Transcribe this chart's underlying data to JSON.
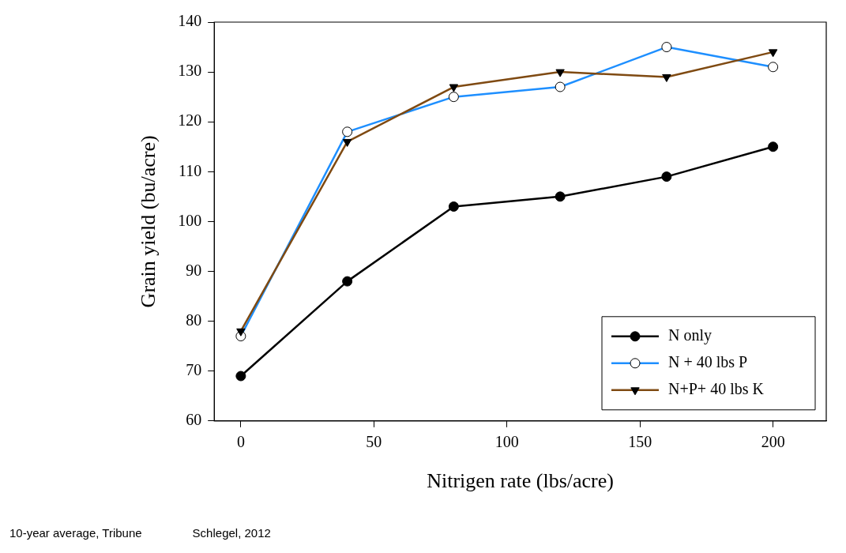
{
  "chart_data": {
    "type": "line",
    "xlabel": "Nitrigen rate (lbs/acre)",
    "ylabel": "Grain yield (bu/acre)",
    "x": [
      0,
      40,
      80,
      120,
      160,
      200
    ],
    "series": [
      {
        "name": "N only",
        "color": "#000000",
        "marker": "circle",
        "values": [
          69,
          88,
          103,
          105,
          109,
          115
        ]
      },
      {
        "name": "N + 40 lbs P",
        "color": "#1e8fff",
        "marker": "circle",
        "values": [
          77,
          118,
          125,
          127,
          135,
          131
        ]
      },
      {
        "name": "N+P+ 40 lbs K",
        "color": "#7f4a12",
        "marker": "triangle",
        "values": [
          78,
          116,
          127,
          130,
          129,
          134
        ]
      }
    ],
    "xlim": [
      -10,
      220
    ],
    "xticks": [
      0,
      50,
      100,
      150,
      200
    ],
    "ylim": [
      60,
      140
    ],
    "yticks": [
      60,
      70,
      80,
      90,
      100,
      110,
      120,
      130,
      140
    ],
    "grid": false,
    "legend": "bottom right",
    "line_style": "solid",
    "annotations": [
      "10-year average, Tribune",
      "Schlegel, 2012"
    ]
  }
}
